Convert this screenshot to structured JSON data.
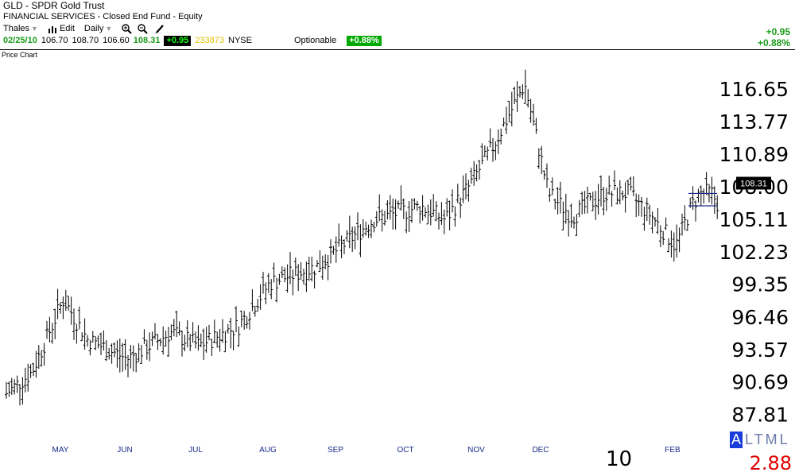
{
  "header": {
    "symbol_line": "GLD - SPDR Gold Trust",
    "sector_line": "FINANCIAL SERVICES - Closed End Fund - Equity",
    "toolbar": {
      "user": "Thales",
      "edit": "Edit",
      "period": "Daily"
    },
    "quote": {
      "date": "02/25/10",
      "open": "106.70",
      "high": "108.70",
      "low": "106.60",
      "last": "108.31",
      "change": "+0.95",
      "volume": "233873",
      "exchange": "NYSE",
      "optionable": "Optionable",
      "change_pct": "+0.88%"
    },
    "right_change": "+0.95",
    "right_change_pct": "+0.88%"
  },
  "chart_title": "Price Chart",
  "chart_data": {
    "type": "ohlc",
    "y_ticks": [
      "116.65",
      "113.77",
      "110.89",
      "108.00",
      "105.11",
      "102.23",
      "99.35",
      "96.46",
      "93.57",
      "90.69",
      "87.81"
    ],
    "ylim": [
      85.6,
      119.4
    ],
    "x_ticks": [
      "MAY",
      "JUN",
      "JUL",
      "AUG",
      "SEP",
      "OCT",
      "NOV",
      "DEC",
      "FEB"
    ],
    "year_label": "10",
    "last_price_label": "108.31",
    "trend_low": 89.2,
    "trend_high": 118.6,
    "late_lows": [
      105.8,
      102.0,
      106.3,
      107.4
    ],
    "volatility": 0.75
  },
  "indicator": {
    "letter": "A",
    "label": "LTML",
    "value": "2.88"
  },
  "colors": {
    "up": "#1a9a1a",
    "down": "#d00000",
    "axis": "#1a2a8a"
  }
}
